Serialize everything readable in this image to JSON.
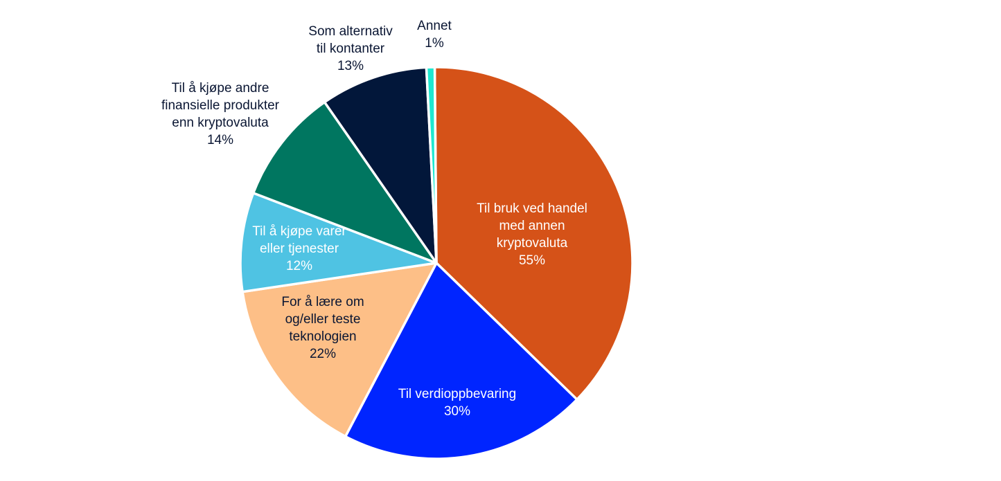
{
  "chart_data": {
    "type": "pie",
    "title": "",
    "slices": [
      {
        "lines": [
          "Til bruk ved handel",
          "med annen",
          "kryptovaluta"
        ],
        "percent_label": "55%",
        "value": 55,
        "color": "#d55218",
        "label_color": "#ffffff",
        "label_position": "inside"
      },
      {
        "lines": [
          "Til verdioppbevaring"
        ],
        "percent_label": "30%",
        "value": 30,
        "color": "#0025ff",
        "label_color": "#ffffff",
        "label_position": "inside"
      },
      {
        "lines": [
          "For å lære om",
          "og/eller teste",
          "teknologien"
        ],
        "percent_label": "22%",
        "value": 22,
        "color": "#fdbf87",
        "label_color": "#0a1633",
        "label_position": "inside"
      },
      {
        "lines": [
          "Til å kjøpe varer",
          "eller tjenester"
        ],
        "percent_label": "12%",
        "value": 12,
        "color": "#4fc3e3",
        "label_color": "#ffffff",
        "label_position": "inside"
      },
      {
        "lines": [
          "Til å kjøpe andre",
          "finansielle produkter",
          "enn kryptovaluta"
        ],
        "percent_label": "14%",
        "value": 14,
        "color": "#007660",
        "label_color": "#0a1633",
        "label_position": "outside"
      },
      {
        "lines": [
          "Som alternativ",
          "til kontanter"
        ],
        "percent_label": "13%",
        "value": 13,
        "color": "#02173a",
        "label_color": "#0a1633",
        "label_position": "outside"
      },
      {
        "lines": [
          "Annet"
        ],
        "percent_label": "1%",
        "value": 1,
        "color": "#1ee8d0",
        "label_color": "#0a1633",
        "label_position": "outside"
      }
    ]
  }
}
